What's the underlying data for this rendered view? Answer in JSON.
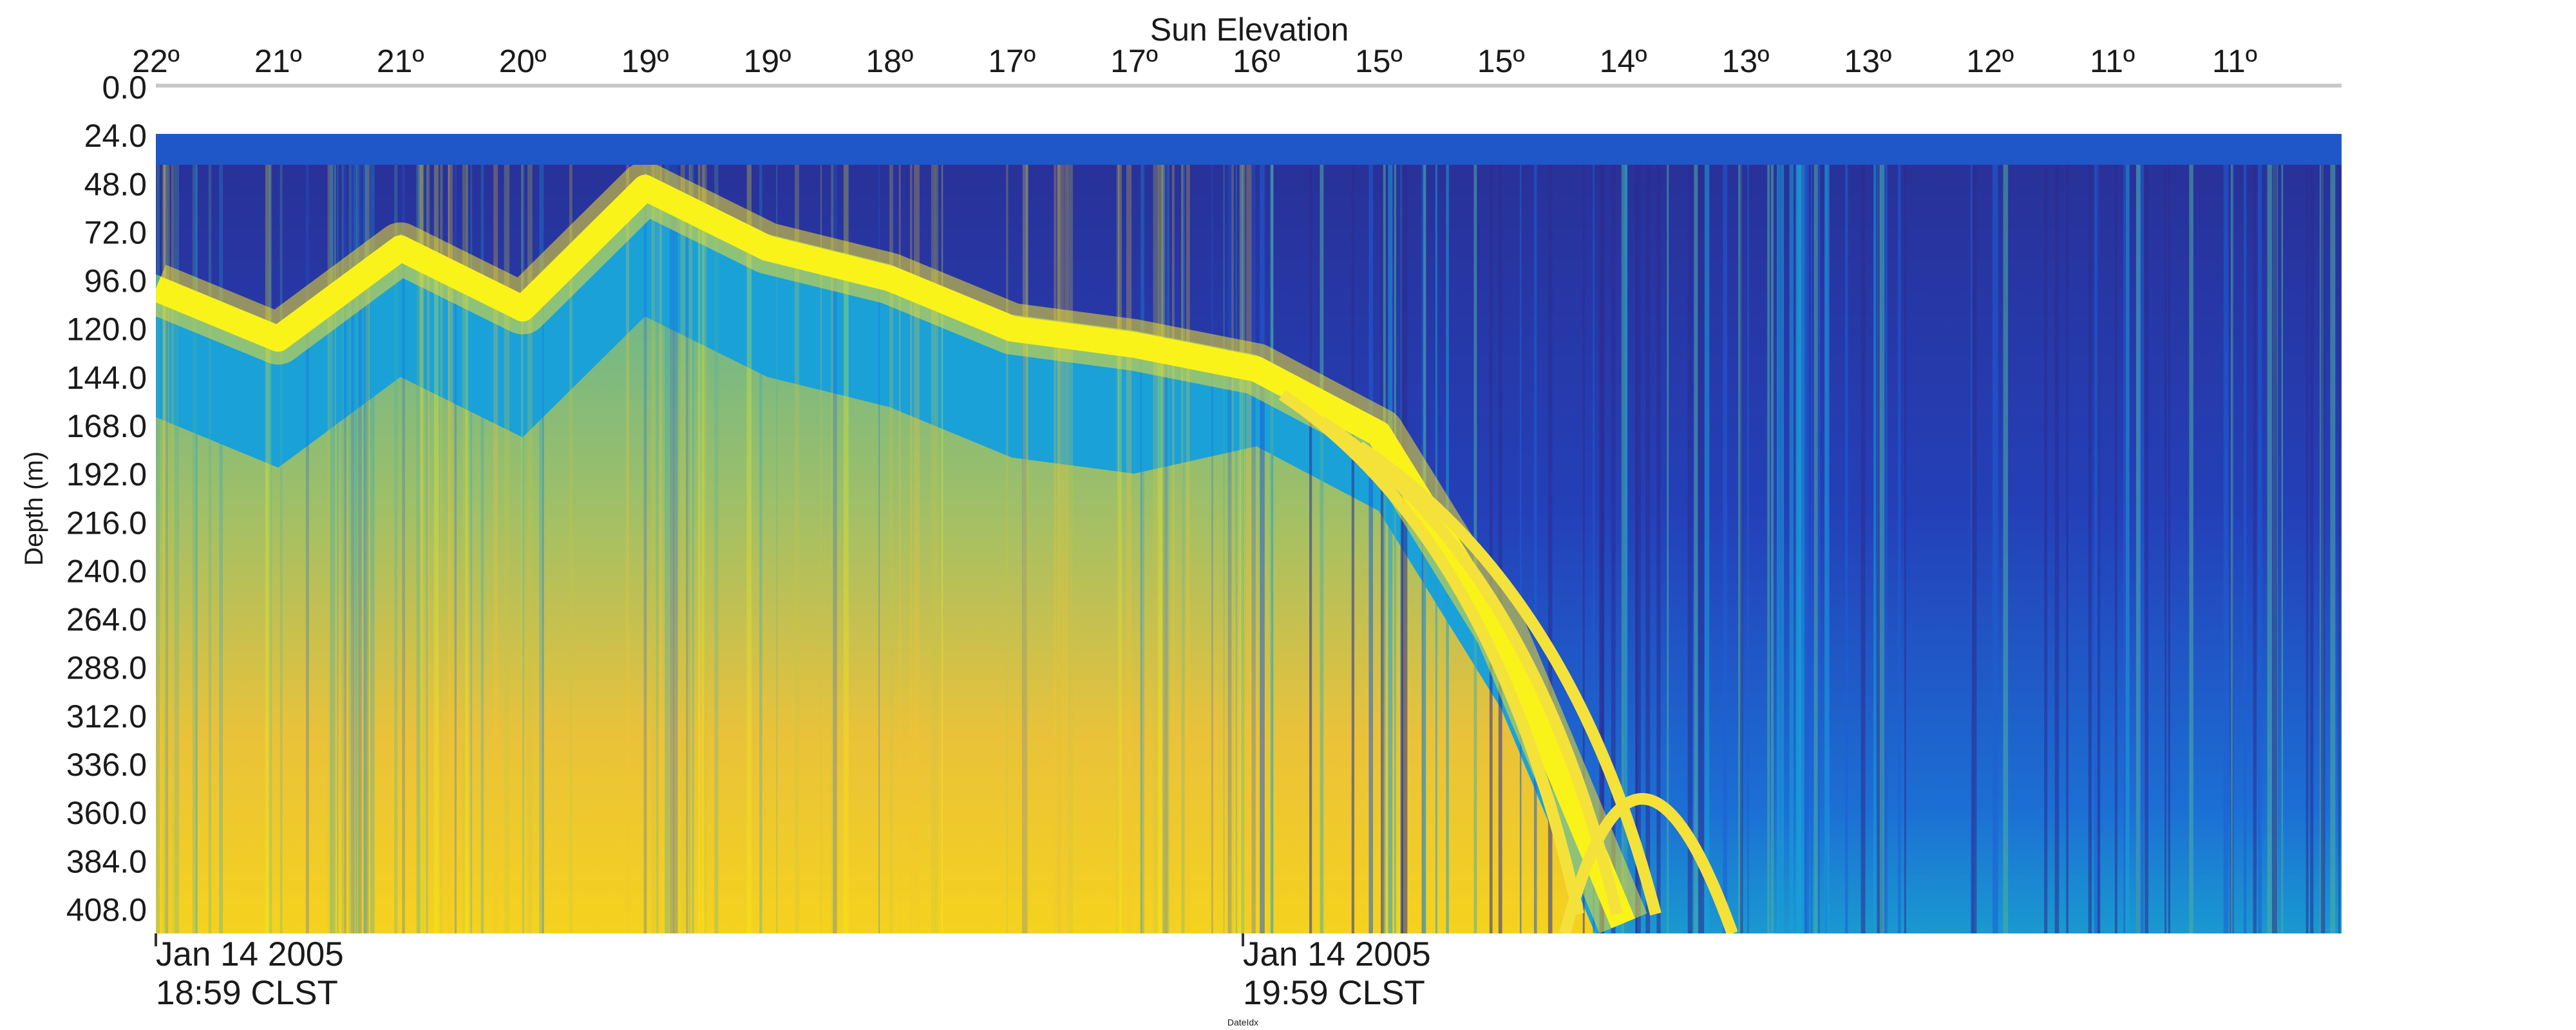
{
  "chart_data": {
    "type": "heatmap",
    "title": "",
    "top_axis": {
      "label": "Sun Elevation",
      "ticks": [
        "22º",
        "21º",
        "21º",
        "20º",
        "19º",
        "19º",
        "18º",
        "17º",
        "17º",
        "16º",
        "15º",
        "15º",
        "14º",
        "13º",
        "13º",
        "12º",
        "11º",
        "11º"
      ]
    },
    "y_axis": {
      "label": "Depth (m)",
      "ticks": [
        "0.0",
        "24.0",
        "48.0",
        "72.0",
        "96.0",
        "120.0",
        "144.0",
        "168.0",
        "192.0",
        "216.0",
        "240.0",
        "264.0",
        "288.0",
        "312.0",
        "336.0",
        "360.0",
        "384.0",
        "408.0"
      ],
      "range": [
        0,
        420
      ],
      "inverted": true
    },
    "x_axis": {
      "label": "DateIdx",
      "ticks": [
        {
          "line1": "Jan 14 2005",
          "line2": "18:59 CLST"
        },
        {
          "line1": "Jan 14 2005",
          "line2": "19:59 CLST"
        }
      ]
    },
    "surface_band_depth": [
      0,
      24
    ],
    "scattering_layer_depth_by_sun_elevation": [
      {
        "sun_elevation": "22º",
        "depth": 100
      },
      {
        "sun_elevation": "21º",
        "depth": 125
      },
      {
        "sun_elevation": "21º",
        "depth": 80
      },
      {
        "sun_elevation": "20º",
        "depth": 110
      },
      {
        "sun_elevation": "19º",
        "depth": 50
      },
      {
        "sun_elevation": "19º",
        "depth": 80
      },
      {
        "sun_elevation": "18º",
        "depth": 95
      },
      {
        "sun_elevation": "17º",
        "depth": 120
      },
      {
        "sun_elevation": "17º",
        "depth": 128
      },
      {
        "sun_elevation": "16º",
        "depth": 140
      },
      {
        "sun_elevation": "15º",
        "depth": 172
      },
      {
        "sun_elevation": "15º",
        "depth": 270
      },
      {
        "sun_elevation": "14º",
        "depth": 415
      }
    ],
    "colormap": [
      "#2b2b8f",
      "#1d5fd6",
      "#1aa1d8",
      "#4fb0a0",
      "#c5c646",
      "#f4c531",
      "#f8f51a"
    ]
  }
}
